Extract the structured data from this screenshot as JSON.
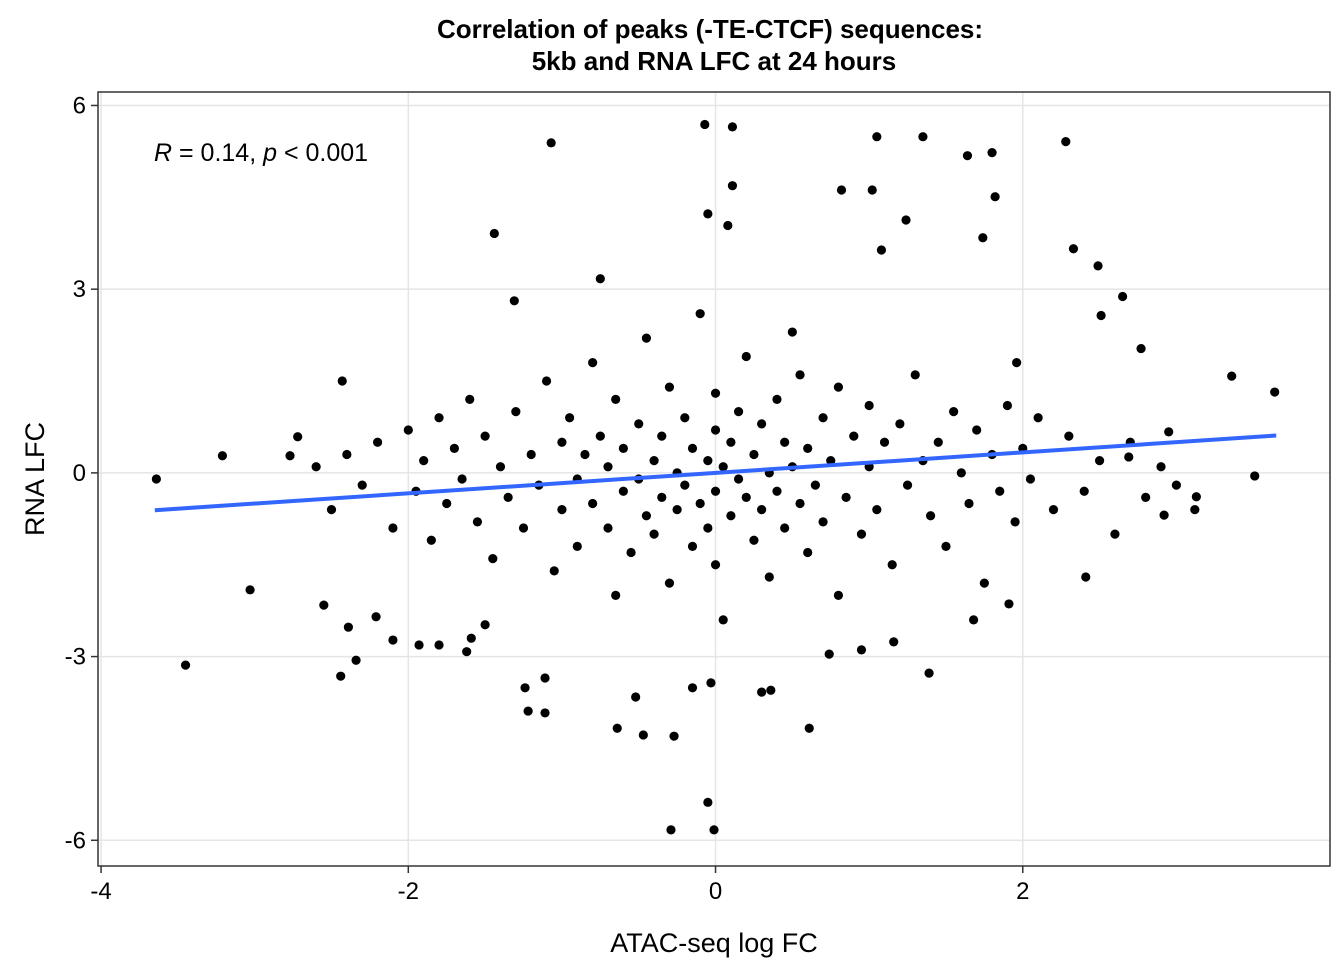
{
  "chart_data": {
    "type": "scatter",
    "title": [
      "Correlation of peaks (-TE-CTCF) sequences:",
      "5kb and RNA LFC at 24 hours"
    ],
    "x_label": "ATAC-seq log FC",
    "y_label": "RNA LFC",
    "annotation": [
      "R",
      " = 0.14, ",
      "p",
      " < 0.001"
    ],
    "xlim": [
      -4.02,
      4.0
    ],
    "ylim": [
      -6.42,
      6.22
    ],
    "xticks": [
      -4,
      -2,
      0,
      2
    ],
    "yticks": [
      -6,
      -3,
      0,
      3,
      6
    ],
    "grid": true,
    "color": "#000000",
    "x": [
      -3.64,
      -3.45,
      -3.21,
      -3.03,
      -2.72,
      -2.77,
      -2.43,
      -2.55,
      -2.44,
      -2.39,
      -2.34,
      -2.21,
      -2.1,
      -1.93,
      -1.8,
      -1.62,
      -1.59,
      -1.5,
      -1.44,
      -1.31,
      -1.24,
      -1.22,
      -1.11,
      -1.11,
      -1.07,
      -0.75,
      -0.64,
      -0.47,
      -0.27,
      -0.29,
      -0.05,
      -0.01,
      -0.07,
      0.11,
      0.11,
      -0.05,
      0.08,
      0.61,
      0.74,
      0.95,
      1.05,
      1.35,
      1.64,
      1.8,
      2.28,
      2.49,
      2.65,
      2.51,
      2.33,
      1.82,
      3.64,
      3.51,
      3.36,
      3.13,
      3.12,
      2.92,
      2.77,
      2.41,
      1.91,
      1.68,
      1.39,
      1.16,
      0.36,
      0.3,
      -0.15,
      -0.03,
      -0.52,
      1.08,
      0.82,
      1.02,
      1.24,
      1.74,
      1.96,
      2.69,
      2.95,
      -2.6,
      -2.5,
      -2.4,
      -2.3,
      -2.2,
      -2.1,
      -2.0,
      -1.95,
      -1.9,
      -1.85,
      -1.8,
      -1.75,
      -1.7,
      -1.65,
      -1.6,
      -1.55,
      -1.5,
      -1.45,
      -1.4,
      -1.35,
      -1.3,
      -1.25,
      -1.2,
      -1.15,
      -1.1,
      -1.05,
      -1.0,
      -1.0,
      -0.95,
      -0.9,
      -0.9,
      -0.85,
      -0.8,
      -0.8,
      -0.75,
      -0.7,
      -0.7,
      -0.65,
      -0.65,
      -0.6,
      -0.6,
      -0.55,
      -0.5,
      -0.5,
      -0.45,
      -0.45,
      -0.4,
      -0.4,
      -0.35,
      -0.35,
      -0.3,
      -0.3,
      -0.25,
      -0.25,
      -0.2,
      -0.2,
      -0.15,
      -0.15,
      -0.1,
      -0.1,
      -0.05,
      -0.05,
      0.0,
      0.0,
      0.0,
      0.0,
      0.05,
      0.05,
      0.1,
      0.1,
      0.15,
      0.15,
      0.2,
      0.2,
      0.25,
      0.25,
      0.3,
      0.3,
      0.35,
      0.35,
      0.4,
      0.4,
      0.45,
      0.45,
      0.5,
      0.5,
      0.55,
      0.55,
      0.6,
      0.6,
      0.65,
      0.7,
      0.7,
      0.75,
      0.8,
      0.8,
      0.85,
      0.9,
      0.95,
      1.0,
      1.0,
      1.05,
      1.1,
      1.15,
      1.2,
      1.25,
      1.3,
      1.35,
      1.4,
      1.45,
      1.5,
      1.55,
      1.6,
      1.65,
      1.7,
      1.75,
      1.8,
      1.85,
      1.9,
      1.95,
      2.0,
      2.05,
      2.1,
      2.2,
      2.3,
      2.4,
      2.5,
      2.6,
      2.7,
      2.8,
      2.9,
      3.0
    ],
    "y": [
      -0.1,
      -3.14,
      0.28,
      -1.91,
      0.59,
      0.28,
      1.5,
      -2.16,
      -3.32,
      -2.52,
      -3.06,
      -2.35,
      -2.73,
      -2.81,
      -2.81,
      -2.92,
      -2.7,
      -2.48,
      3.91,
      2.81,
      -3.51,
      -3.89,
      -3.92,
      -3.35,
      5.39,
      3.17,
      -4.17,
      -4.28,
      -4.3,
      -5.83,
      -5.38,
      -5.83,
      5.69,
      5.65,
      4.69,
      4.23,
      4.04,
      -4.17,
      -2.96,
      -2.89,
      5.49,
      5.49,
      5.18,
      5.23,
      5.41,
      3.38,
      2.88,
      2.57,
      3.66,
      4.51,
      1.32,
      -0.05,
      1.58,
      -0.39,
      -0.6,
      -0.69,
      2.03,
      -1.7,
      -2.14,
      -2.4,
      -3.27,
      -2.76,
      -3.55,
      -3.58,
      -3.51,
      -3.43,
      -3.66,
      3.64,
      4.62,
      4.62,
      4.13,
      3.84,
      1.8,
      0.26,
      0.67,
      0.1,
      -0.6,
      0.3,
      -0.2,
      0.5,
      -0.9,
      0.7,
      -0.3,
      0.2,
      -1.1,
      0.9,
      -0.5,
      0.4,
      -0.1,
      1.2,
      -0.8,
      0.6,
      -1.4,
      0.1,
      -0.4,
      1.0,
      -0.9,
      0.3,
      -0.2,
      1.5,
      -1.6,
      0.5,
      -0.6,
      0.9,
      -0.1,
      -1.2,
      0.3,
      1.8,
      -0.5,
      0.6,
      -0.9,
      0.1,
      -2.0,
      1.2,
      -0.3,
      0.4,
      -1.3,
      0.8,
      -0.1,
      -0.7,
      2.2,
      0.2,
      -1.0,
      0.6,
      -0.4,
      1.4,
      -1.8,
      0.0,
      -0.6,
      0.9,
      -0.2,
      0.4,
      -1.2,
      2.6,
      -0.5,
      0.2,
      -0.9,
      0.7,
      -0.3,
      1.3,
      -1.5,
      0.1,
      -2.4,
      0.5,
      -0.7,
      1.0,
      -0.1,
      -0.4,
      1.9,
      0.3,
      -1.1,
      0.8,
      -0.6,
      0.0,
      -1.7,
      1.2,
      -0.3,
      0.5,
      -0.9,
      2.3,
      0.1,
      -0.5,
      1.6,
      -1.3,
      0.4,
      -0.2,
      0.9,
      -0.8,
      0.2,
      -2.0,
      1.4,
      -0.4,
      0.6,
      -1.0,
      0.1,
      1.1,
      -0.6,
      0.5,
      -1.5,
      0.8,
      -0.2,
      1.6,
      0.2,
      -0.7,
      0.5,
      -1.2,
      1.0,
      0.0,
      -0.5,
      0.7,
      -1.8,
      0.3,
      -0.3,
      1.1,
      -0.8,
      0.4,
      -0.1,
      0.9,
      -0.6,
      0.6,
      -0.3,
      0.2,
      -1.0,
      0.5,
      -0.4,
      0.1,
      -0.2
    ],
    "trend_line": {
      "x": [
        -3.65,
        3.65
      ],
      "y": [
        -0.61,
        0.61
      ],
      "color": "#3366ff"
    }
  }
}
